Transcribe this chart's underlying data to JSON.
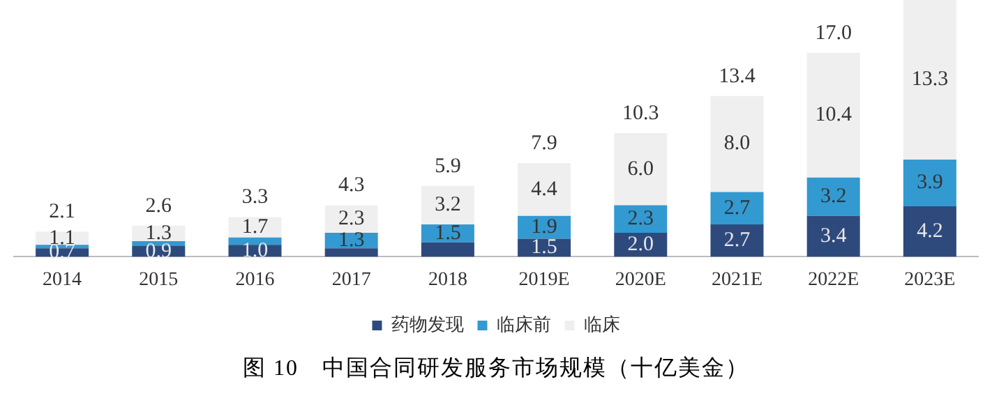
{
  "chart_data": {
    "type": "bar",
    "stacked": true,
    "title": "图 10　中国合同研发服务市场规模（十亿美金）",
    "categories": [
      "2014",
      "2015",
      "2016",
      "2017",
      "2018",
      "2019E",
      "2020E",
      "2021E",
      "2022E",
      "2023E"
    ],
    "series": [
      {
        "name": "药物发现",
        "color": "#2e4a7d",
        "values": [
          0.7,
          0.9,
          1.0,
          0.7,
          1.2,
          1.5,
          2.0,
          2.7,
          3.4,
          4.2
        ],
        "value_labels": [
          "0.7",
          "0.9",
          "1.0",
          null,
          null,
          "1.5",
          "2.0",
          "2.7",
          "3.4",
          "4.2"
        ]
      },
      {
        "name": "临床前",
        "color": "#3399d1",
        "values": [
          0.3,
          0.4,
          0.6,
          1.3,
          1.5,
          1.9,
          2.3,
          2.7,
          3.2,
          3.9
        ],
        "value_labels": [
          null,
          null,
          null,
          "1.3",
          "1.5",
          "1.9",
          "2.3",
          "2.7",
          "3.2",
          "3.9"
        ]
      },
      {
        "name": "临床",
        "color": "#efefef",
        "values": [
          1.1,
          1.3,
          1.7,
          2.3,
          3.2,
          4.4,
          6.0,
          8.0,
          10.4,
          13.3
        ],
        "value_labels": [
          "1.1",
          "1.3",
          "1.7",
          "2.3",
          "3.2",
          "4.4",
          "6.0",
          "8.0",
          "10.4",
          "13.3"
        ]
      }
    ],
    "totals": [
      "2.1",
      "2.6",
      "3.3",
      "4.3",
      "5.9",
      "7.9",
      "10.3",
      "13.4",
      "17.0",
      null
    ],
    "legend": "bottom",
    "tick_labels": "x",
    "grid": false
  }
}
